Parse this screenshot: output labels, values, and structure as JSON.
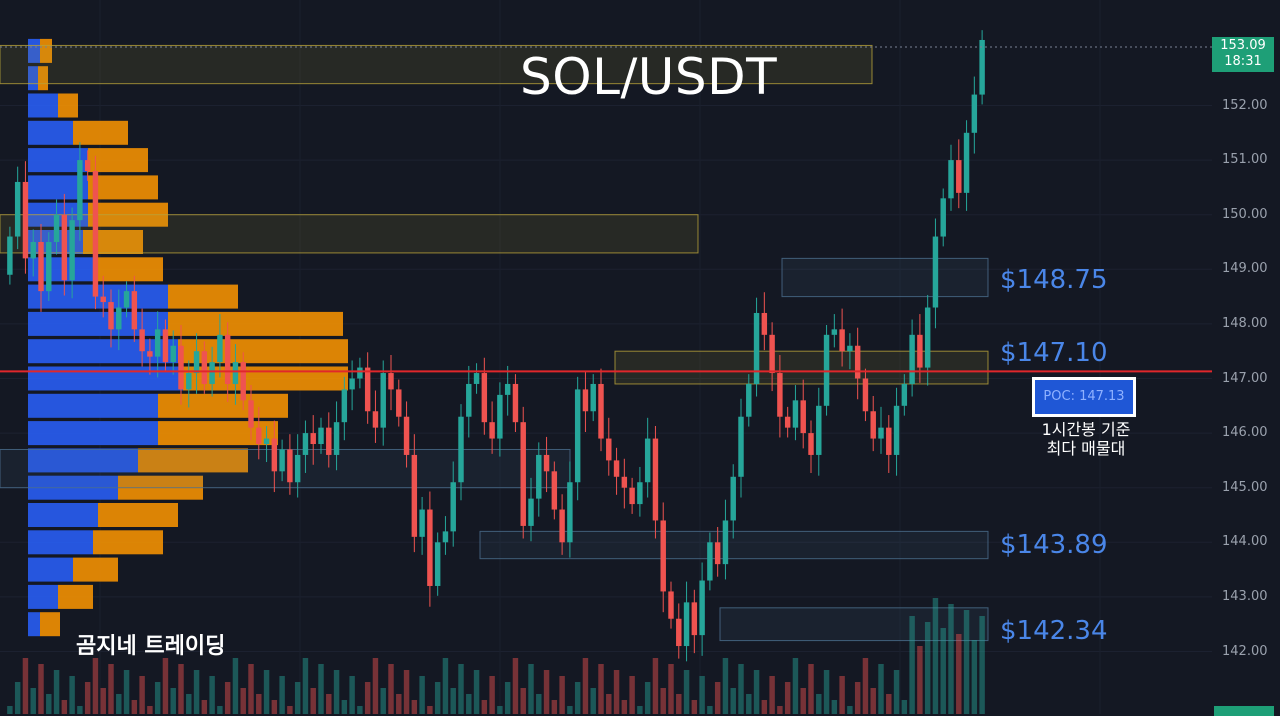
{
  "chart_data": {
    "type": "candlestick",
    "title": "SOL/USDT",
    "y_axis_ticks": [
      "152.00",
      "151.00",
      "150.00",
      "149.00",
      "148.00",
      "147.00",
      "146.00",
      "145.00",
      "144.00",
      "143.00",
      "142.00"
    ],
    "ylim": [
      141.0,
      154.0
    ],
    "current_price": {
      "price": "153.09",
      "time": "18:31"
    },
    "poc": {
      "label": "POC: 147.13",
      "value": 147.13
    },
    "levels": [
      {
        "label": "$148.75",
        "value": 148.75
      },
      {
        "label": "$147.10",
        "value": 147.1
      },
      {
        "label": "$143.89",
        "value": 143.89
      },
      {
        "label": "$142.34",
        "value": 142.34
      }
    ],
    "annotation_lines": [
      "1시간봉 기준",
      "최다 매물대"
    ],
    "watermark": "곰지네 트레이딩",
    "colors": {
      "up": "#26a69a",
      "down": "#ef5350",
      "poc_line": "#e0272b",
      "blue_volume": "#2962ff",
      "orange_volume": "#ff9800",
      "level_text": "#4a86e8",
      "price_tag": "#1e9f77"
    },
    "candle_path": [
      148.9,
      149.6,
      150.6,
      149.2,
      149.5,
      148.6,
      149.5,
      150.0,
      148.8,
      149.9,
      151.0,
      150.8,
      148.5,
      148.4,
      147.9,
      148.3,
      148.6,
      147.9,
      147.5,
      147.4,
      147.9,
      147.3,
      147.6,
      146.8,
      147.1,
      147.5,
      146.9,
      147.3,
      147.8,
      146.9,
      147.3,
      146.6,
      146.1,
      145.8,
      145.9,
      145.3,
      145.7,
      145.1,
      145.6,
      146.0,
      145.8,
      146.1,
      145.6,
      146.2,
      146.8,
      147.0,
      147.2,
      146.4,
      146.1,
      147.1,
      146.8,
      146.3,
      145.6,
      144.1,
      144.6,
      143.2,
      144.0,
      144.2,
      145.1,
      146.3,
      146.9,
      147.1,
      146.2,
      145.9,
      146.7,
      146.9,
      146.2,
      144.3,
      144.8,
      145.6,
      145.3,
      144.6,
      144.0,
      145.1,
      146.8,
      146.4,
      146.9,
      145.9,
      145.5,
      145.2,
      145.0,
      144.7,
      145.1,
      145.9,
      144.4,
      143.1,
      142.6,
      142.1,
      142.9,
      142.3,
      143.3,
      144.0,
      143.6,
      144.4,
      145.2,
      146.3,
      146.9,
      148.2,
      147.8,
      147.1,
      146.3,
      146.1,
      146.6,
      146.0,
      145.6,
      146.5,
      147.8,
      147.9,
      147.5,
      147.6,
      147.0,
      146.4,
      145.9,
      146.1,
      145.6,
      146.5,
      146.9,
      147.8,
      147.2,
      148.3,
      149.6,
      150.3,
      151.0,
      150.4,
      151.5,
      152.2,
      153.2
    ],
    "value_area_box_price_ranges": [
      [
        152.4,
        153.1
      ],
      [
        149.3,
        150.0
      ],
      [
        148.5,
        149.2
      ],
      [
        146.9,
        147.5
      ],
      [
        145.0,
        145.7
      ],
      [
        143.7,
        144.2
      ],
      [
        142.2,
        142.8
      ]
    ],
    "volume_profile_bars": [
      {
        "price": 149.0,
        "blue": 65,
        "orange": 70
      },
      {
        "price": 148.5,
        "blue": 140,
        "orange": 70
      },
      {
        "price": 148.0,
        "blue": 140,
        "orange": 175
      },
      {
        "price": 147.5,
        "blue": 150,
        "orange": 170
      },
      {
        "price": 147.0,
        "blue": 155,
        "orange": 165
      },
      {
        "price": 146.5,
        "blue": 130,
        "orange": 130
      },
      {
        "price": 146.0,
        "blue": 130,
        "orange": 120
      },
      {
        "price": 145.5,
        "blue": 110,
        "orange": 110
      },
      {
        "price": 145.0,
        "blue": 90,
        "orange": 85
      },
      {
        "price": 144.5,
        "blue": 70,
        "orange": 80
      },
      {
        "price": 144.0,
        "blue": 65,
        "orange": 70
      },
      {
        "price": 143.5,
        "blue": 45,
        "orange": 45
      },
      {
        "price": 143.0,
        "blue": 30,
        "orange": 35
      },
      {
        "price": 142.5,
        "blue": 12,
        "orange": 20
      },
      {
        "price": 151.5,
        "blue": 45,
        "orange": 55
      },
      {
        "price": 151.0,
        "blue": 60,
        "orange": 60
      },
      {
        "price": 150.5,
        "blue": 60,
        "orange": 70
      },
      {
        "price": 150.0,
        "blue": 60,
        "orange": 80
      },
      {
        "price": 149.5,
        "blue": 55,
        "orange": 60
      },
      {
        "price": 152.0,
        "blue": 30,
        "orange": 20
      },
      {
        "price": 152.5,
        "blue": 10,
        "orange": 10
      },
      {
        "price": 153.0,
        "blue": 12,
        "orange": 12
      }
    ]
  }
}
